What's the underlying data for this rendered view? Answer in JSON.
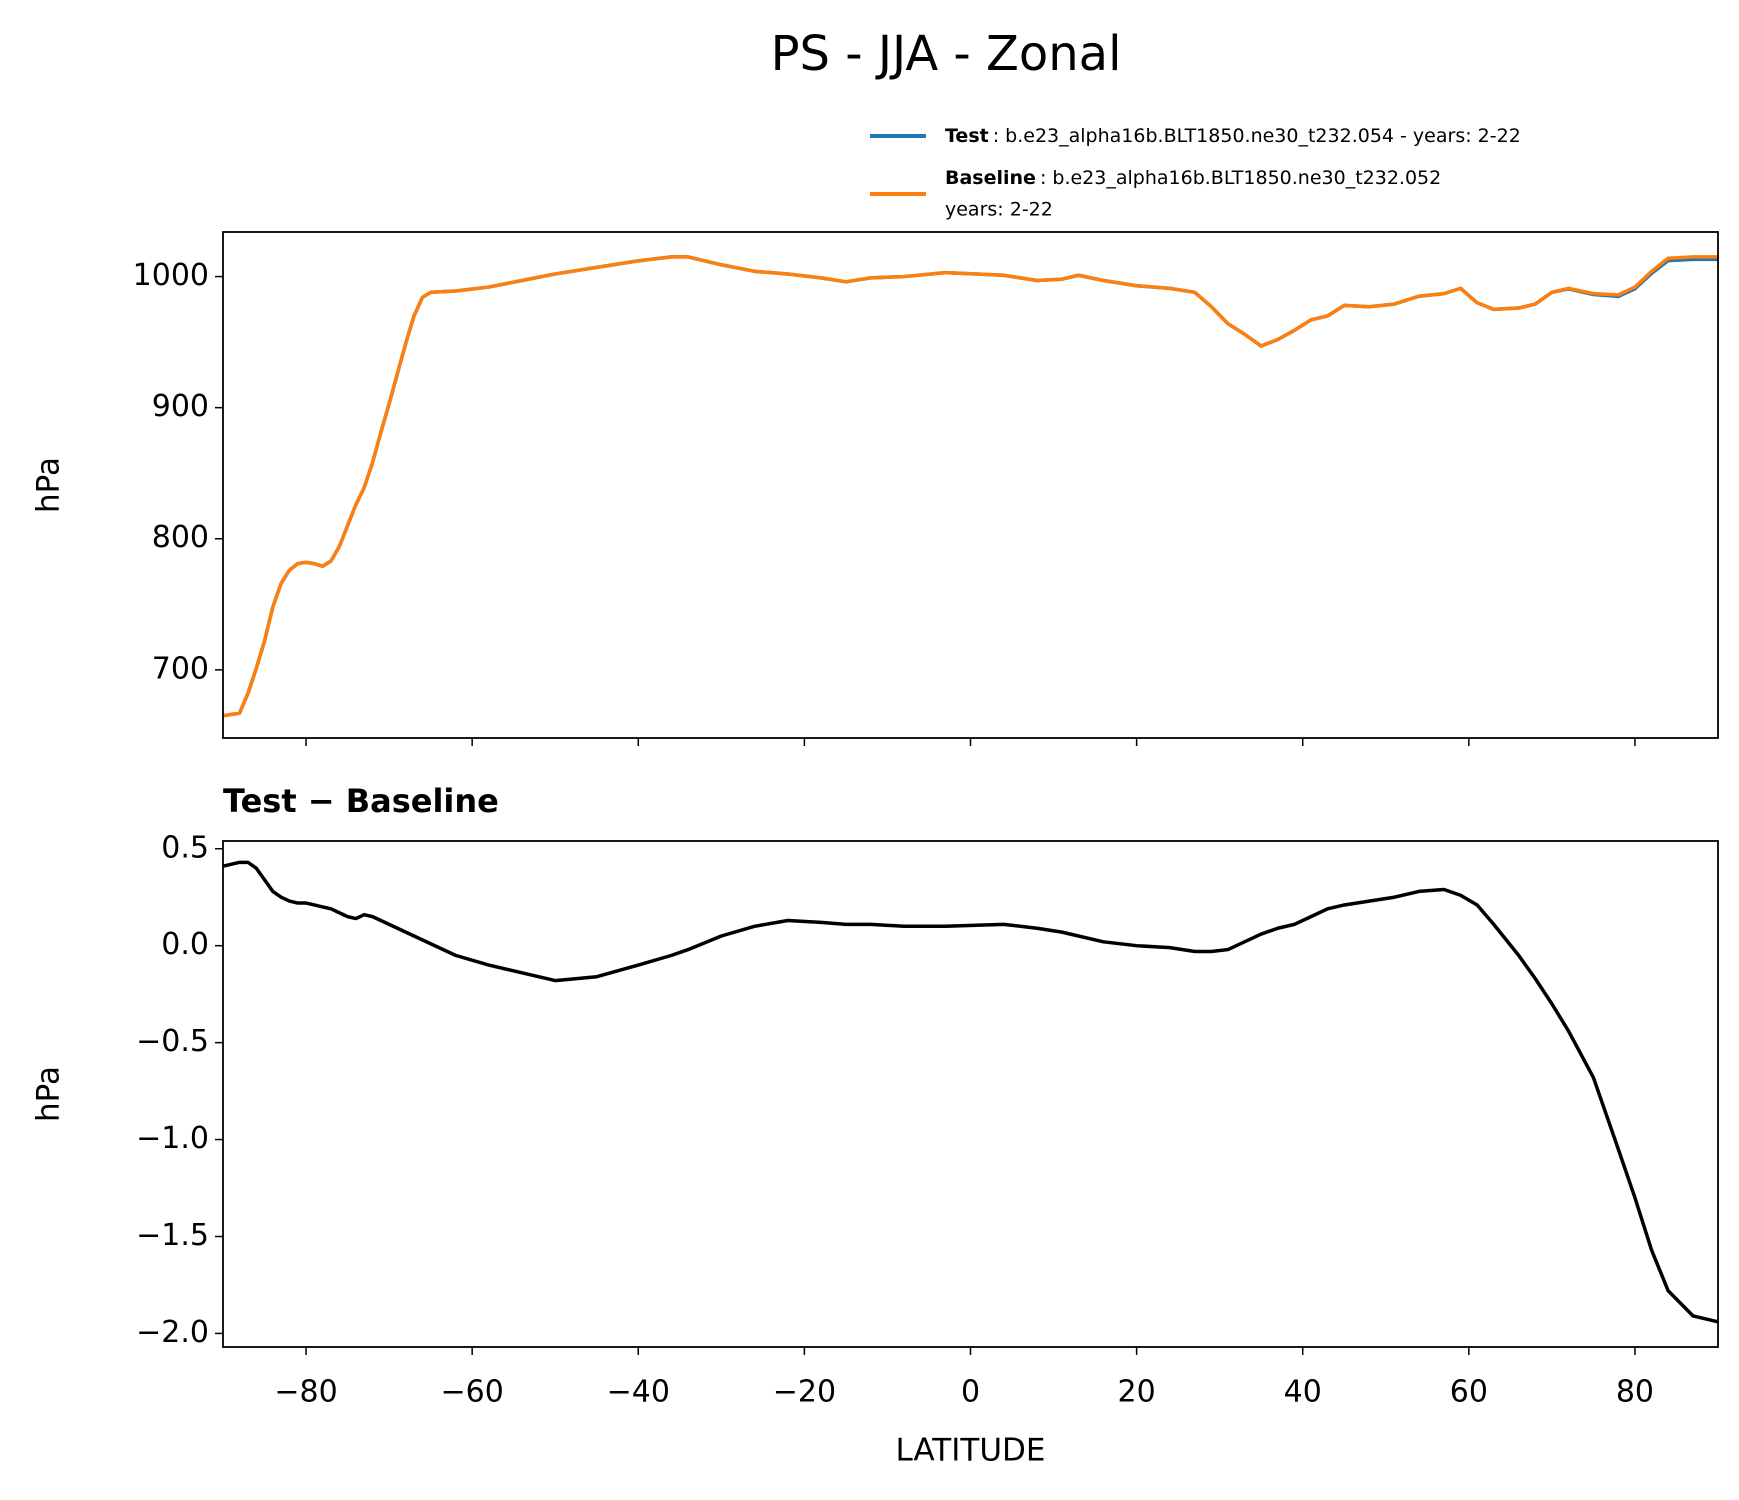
{
  "title": "PS - JJA - Zonal",
  "chart_data": [
    {
      "type": "line",
      "x": [
        -90,
        -88,
        -87,
        -86,
        -85,
        -84,
        -83,
        -82,
        -81,
        -80,
        -79,
        -78,
        -77,
        -76,
        -75,
        -74,
        -73,
        -72,
        -71,
        -70,
        -69,
        -68,
        -67,
        -66,
        -65,
        -62,
        -58,
        -54,
        -50,
        -45,
        -40,
        -36,
        -34,
        -30,
        -26,
        -22,
        -18,
        -15,
        -12,
        -8,
        -3,
        4,
        8,
        11,
        13,
        16,
        20,
        24,
        27,
        29,
        31,
        33,
        35,
        37,
        39,
        41,
        43,
        45,
        48,
        51,
        54,
        57,
        59,
        61,
        63,
        66,
        68,
        70,
        72,
        75,
        78,
        80,
        82,
        84,
        87,
        90
      ],
      "xlim": [
        -90,
        90
      ],
      "ylim": [
        648,
        1034
      ],
      "yticks": [
        700,
        800,
        900,
        1000
      ],
      "ylabel": "hPa",
      "series": [
        {
          "name": "Test",
          "description": ": b.e23_alpha16b.BLT1850.ne30_t232.054 - years: 2-22",
          "color": "#1f77b4",
          "values": [
            665,
            667,
            682,
            701,
            722,
            748,
            766,
            776,
            781,
            782,
            781,
            779,
            783,
            794,
            810,
            826,
            839,
            858,
            881,
            903,
            926,
            949,
            970,
            984,
            988,
            989,
            992,
            997,
            1002,
            1007,
            1012,
            1015,
            1015,
            1009,
            1004,
            1002,
            999,
            996,
            999,
            1000,
            1003,
            1001,
            997,
            998,
            1001,
            997,
            993,
            991,
            988,
            977,
            964,
            956,
            947,
            952,
            959,
            967,
            970,
            978,
            977,
            979,
            985,
            987,
            991,
            980,
            975,
            976,
            979,
            988,
            990.6,
            986.3,
            984.9,
            990.7,
            1002.4,
            1012.2,
            1013.1,
            1013.1
          ]
        },
        {
          "name": "Baseline",
          "description": [
            ": b.e23_alpha16b.BLT1850.ne30_t232.052",
            "years: 2-22"
          ],
          "color": "#ff7f0e",
          "values": [
            665,
            667,
            682,
            701,
            722,
            748,
            766,
            776,
            781,
            782,
            781,
            779,
            783,
            794,
            810,
            826,
            839,
            858,
            881,
            903,
            926,
            949,
            970,
            984,
            988,
            989,
            992,
            997,
            1002,
            1007,
            1012,
            1015,
            1015,
            1009,
            1004,
            1002,
            999,
            996,
            999,
            1000,
            1003,
            1001,
            997,
            998,
            1001,
            997,
            993,
            991,
            988,
            977,
            964,
            956,
            947,
            952,
            959,
            967,
            970,
            978,
            977,
            979,
            985,
            987,
            991,
            980,
            975,
            976,
            979,
            988,
            991,
            987,
            986,
            992,
            1004,
            1014,
            1015,
            1015
          ]
        }
      ]
    },
    {
      "type": "line",
      "subtitle": "Test − Baseline",
      "x": [
        -90,
        -88,
        -87,
        -86,
        -85,
        -84,
        -83,
        -82,
        -81,
        -80,
        -79,
        -78,
        -77,
        -76,
        -75,
        -74,
        -73,
        -72,
        -71,
        -70,
        -69,
        -68,
        -67,
        -66,
        -65,
        -62,
        -58,
        -54,
        -50,
        -45,
        -40,
        -36,
        -34,
        -30,
        -26,
        -22,
        -18,
        -15,
        -12,
        -8,
        -3,
        4,
        8,
        11,
        13,
        16,
        20,
        24,
        27,
        29,
        31,
        33,
        35,
        37,
        39,
        41,
        43,
        45,
        48,
        51,
        54,
        57,
        59,
        61,
        63,
        66,
        68,
        70,
        72,
        75,
        78,
        80,
        82,
        84,
        87,
        90
      ],
      "xlim": [
        -90,
        90
      ],
      "xticks": [
        {
          "value": -80,
          "label": "−80"
        },
        {
          "value": -60,
          "label": "−60"
        },
        {
          "value": -40,
          "label": "−40"
        },
        {
          "value": -20,
          "label": "−20"
        },
        0,
        20,
        40,
        60,
        80
      ],
      "xlabel": "LATITUDE",
      "ylim": [
        -2.07,
        0.54
      ],
      "yticks": [
        0.5,
        {
          "value": 0,
          "label": "0.0"
        },
        {
          "value": -0.5,
          "label": "−0.5"
        },
        {
          "value": -1,
          "label": "−1.0"
        },
        {
          "value": -1.5,
          "label": "−1.5"
        },
        {
          "value": -2,
          "label": "−2.0"
        }
      ],
      "ylabel": "hPa",
      "series": [
        {
          "color": "#000000",
          "values": [
            0.41,
            0.43,
            0.43,
            0.4,
            0.34,
            0.28,
            0.25,
            0.23,
            0.22,
            0.22,
            0.21,
            0.2,
            0.19,
            0.17,
            0.15,
            0.14,
            0.16,
            0.15,
            0.13,
            0.11,
            0.09,
            0.07,
            0.05,
            0.03,
            0.01,
            -0.05,
            -0.1,
            -0.14,
            -0.18,
            -0.16,
            -0.1,
            -0.05,
            -0.02,
            0.05,
            0.1,
            0.13,
            0.12,
            0.11,
            0.11,
            0.1,
            0.1,
            0.11,
            0.09,
            0.07,
            0.05,
            0.02,
            0.0,
            -0.01,
            -0.03,
            -0.03,
            -0.02,
            0.02,
            0.06,
            0.09,
            0.11,
            0.15,
            0.19,
            0.21,
            0.23,
            0.25,
            0.28,
            0.29,
            0.26,
            0.21,
            0.11,
            -0.05,
            -0.17,
            -0.3,
            -0.44,
            -0.68,
            -1.05,
            -1.3,
            -1.57,
            -1.78,
            -1.91,
            -1.94
          ]
        }
      ]
    }
  ]
}
